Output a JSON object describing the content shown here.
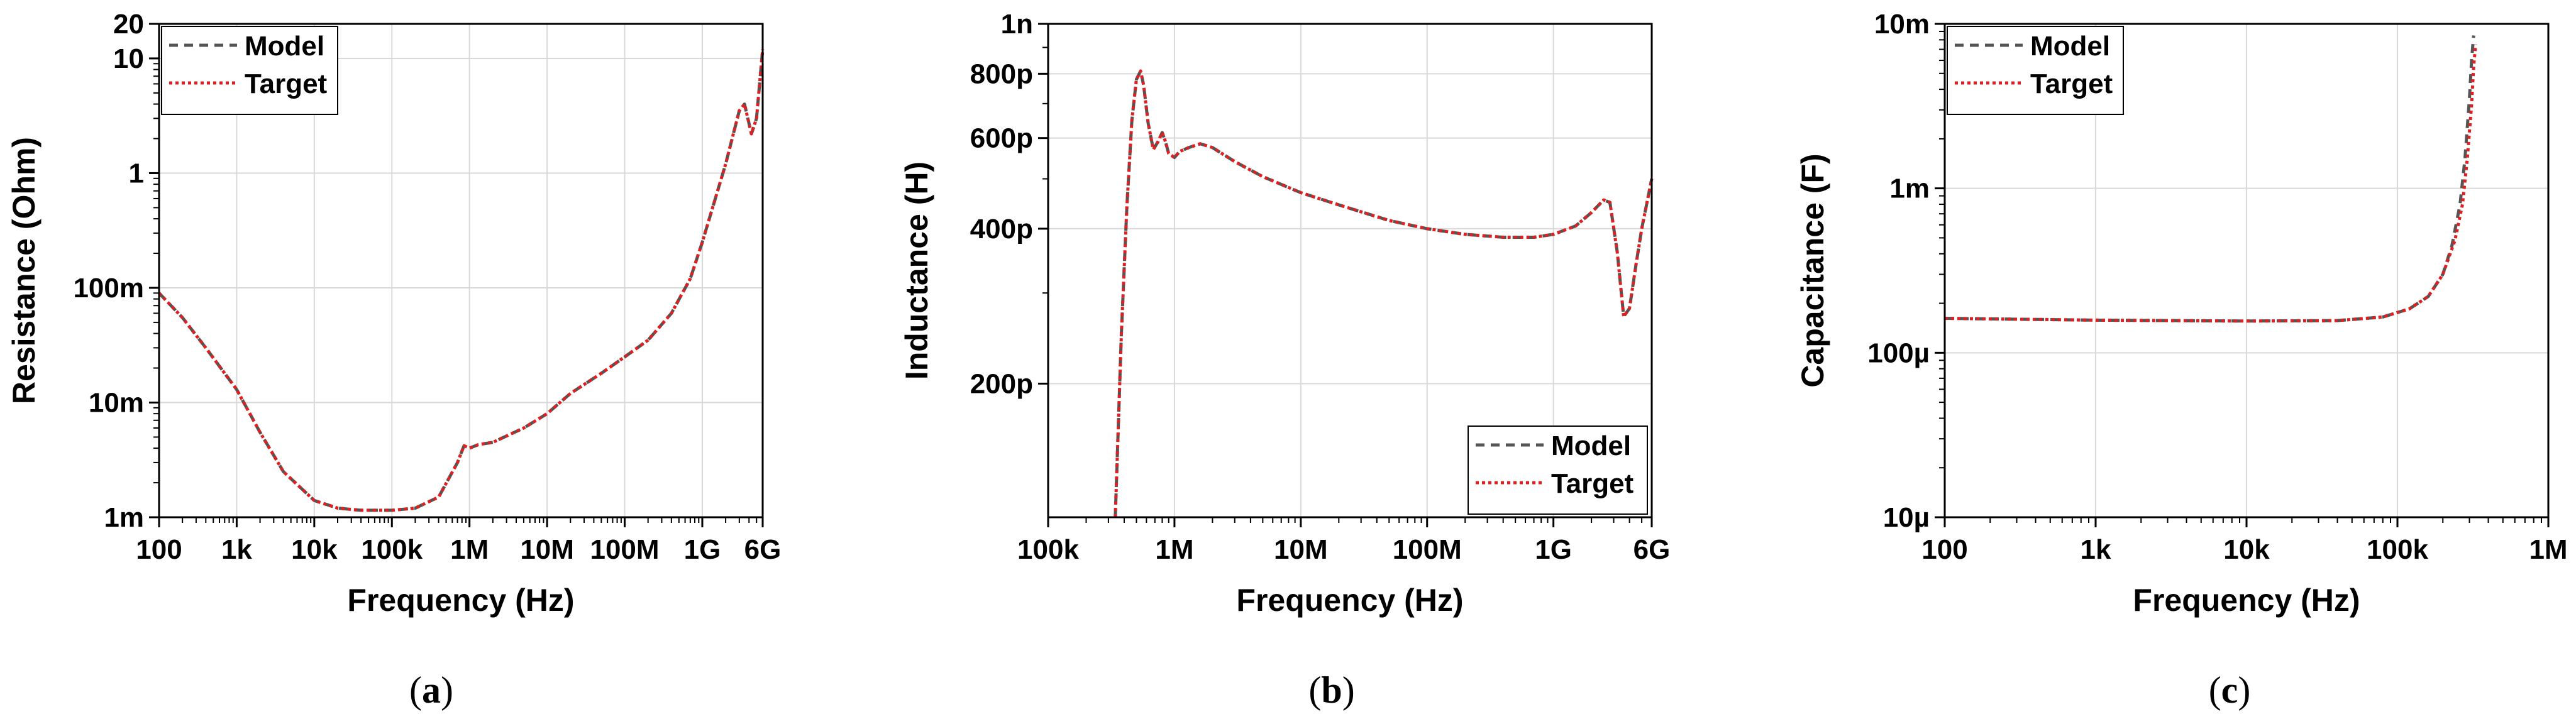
{
  "chart_data": [
    {
      "type": "line",
      "xlabel": "Frequency (Hz)",
      "ylabel": "Resistance (Ohm)",
      "xscale": "log",
      "yscale": "log",
      "xlim": [
        100,
        6000000000
      ],
      "ylim": [
        0.001,
        20
      ],
      "xticks": [
        {
          "value": 100,
          "label": "100"
        },
        {
          "value": 1000,
          "label": "1k"
        },
        {
          "value": 10000,
          "label": "10k"
        },
        {
          "value": 100000,
          "label": "100k"
        },
        {
          "value": 1000000,
          "label": "1M"
        },
        {
          "value": 10000000,
          "label": "10M"
        },
        {
          "value": 100000000,
          "label": "100M"
        },
        {
          "value": 1000000000,
          "label": "1G"
        },
        {
          "value": 6000000000,
          "label": "6G"
        }
      ],
      "yticks": [
        {
          "value": 0.001,
          "label": "1m"
        },
        {
          "value": 0.01,
          "label": "10m"
        },
        {
          "value": 0.1,
          "label": "100m"
        },
        {
          "value": 1,
          "label": "1"
        },
        {
          "value": 10,
          "label": "10"
        },
        {
          "value": 20,
          "label": "20"
        }
      ],
      "grid": true,
      "legend_position": "top-left",
      "caption": "a",
      "series": [
        {
          "name": "Model",
          "color": "#555555",
          "style": "dashed",
          "x": [
            100,
            200,
            400,
            1000,
            2000,
            4000,
            10000,
            20000,
            40000,
            100000,
            200000,
            400000,
            700000,
            850000,
            1000000,
            1300000,
            2000000,
            5000000,
            10000000,
            20000000,
            50000000,
            100000000,
            200000000,
            400000000,
            700000000,
            1000000000,
            2000000000,
            3000000000,
            3500000000,
            4300000000,
            5000000000,
            6000000000
          ],
          "y": [
            0.09,
            0.055,
            0.03,
            0.013,
            0.0055,
            0.0025,
            0.0014,
            0.0012,
            0.00115,
            0.00115,
            0.0012,
            0.0015,
            0.003,
            0.0042,
            0.004,
            0.0043,
            0.0045,
            0.006,
            0.008,
            0.012,
            0.018,
            0.025,
            0.035,
            0.06,
            0.12,
            0.25,
            1.2,
            3.5,
            4.0,
            2.2,
            3.0,
            12
          ]
        },
        {
          "name": "Target",
          "color": "#e02020",
          "style": "dotted",
          "x": [
            100,
            200,
            400,
            1000,
            2000,
            4000,
            10000,
            20000,
            40000,
            100000,
            200000,
            400000,
            700000,
            850000,
            1000000,
            1300000,
            2000000,
            5000000,
            10000000,
            20000000,
            50000000,
            100000000,
            200000000,
            400000000,
            700000000,
            1000000000,
            2000000000,
            3000000000,
            3500000000,
            4300000000,
            5000000000,
            6000000000
          ],
          "y": [
            0.09,
            0.055,
            0.03,
            0.013,
            0.0055,
            0.0025,
            0.0014,
            0.0012,
            0.00115,
            0.00115,
            0.0012,
            0.0015,
            0.003,
            0.0042,
            0.004,
            0.0043,
            0.0045,
            0.006,
            0.008,
            0.012,
            0.018,
            0.025,
            0.035,
            0.06,
            0.12,
            0.25,
            1.2,
            3.5,
            4.0,
            2.2,
            3.0,
            12
          ]
        }
      ]
    },
    {
      "type": "line",
      "xlabel": "Frequency (Hz)",
      "ylabel": "Inductance (H)",
      "xscale": "log",
      "yscale": "log",
      "xlim": [
        100000,
        6000000000
      ],
      "ylim": [
        1.1e-10,
        1e-09
      ],
      "xticks": [
        {
          "value": 100000,
          "label": "100k"
        },
        {
          "value": 1000000,
          "label": "1M"
        },
        {
          "value": 10000000,
          "label": "10M"
        },
        {
          "value": 100000000,
          "label": "100M"
        },
        {
          "value": 1000000000,
          "label": "1G"
        },
        {
          "value": 6000000000,
          "label": "6G"
        }
      ],
      "yticks": [
        {
          "value": 2e-10,
          "label": "200p"
        },
        {
          "value": 4e-10,
          "label": "400p"
        },
        {
          "value": 6e-10,
          "label": "600p"
        },
        {
          "value": 8e-10,
          "label": "800p"
        },
        {
          "value": 1e-09,
          "label": "1n"
        }
      ],
      "grid": true,
      "legend_position": "bottom-right",
      "caption": "b",
      "series": [
        {
          "name": "Model",
          "color": "#555555",
          "style": "dashed",
          "x": [
            340000,
            380000,
            420000,
            460000,
            500000,
            540000,
            570000,
            620000,
            680000,
            740000,
            800000,
            850000,
            900000,
            1000000,
            1100000,
            1300000,
            1600000,
            2000000,
            3000000,
            5000000,
            10000000,
            20000000,
            50000000,
            100000000,
            200000000,
            400000000,
            700000000,
            1000000000,
            1500000000,
            2000000000,
            2500000000,
            2800000000,
            3200000000,
            3600000000,
            4000000000,
            4500000000,
            5000000000,
            6000000000
          ],
          "y": [
            1.1e-10,
            2.5e-10,
            4.4e-10,
            6.5e-10,
            7.8e-10,
            8.1e-10,
            7.6e-10,
            6.4e-10,
            5.7e-10,
            5.9e-10,
            6.15e-10,
            5.9e-10,
            5.6e-10,
            5.5e-10,
            5.65e-10,
            5.75e-10,
            5.85e-10,
            5.75e-10,
            5.4e-10,
            5.05e-10,
            4.7e-10,
            4.45e-10,
            4.15e-10,
            4e-10,
            3.9e-10,
            3.85e-10,
            3.85e-10,
            3.9e-10,
            4.05e-10,
            4.3e-10,
            4.55e-10,
            4.5e-10,
            3.6e-10,
            2.7e-10,
            2.8e-10,
            3.4e-10,
            4e-10,
            5e-10
          ]
        },
        {
          "name": "Target",
          "color": "#e02020",
          "style": "dotted",
          "x": [
            340000,
            380000,
            420000,
            460000,
            500000,
            540000,
            570000,
            620000,
            680000,
            740000,
            800000,
            850000,
            900000,
            1000000,
            1100000,
            1300000,
            1600000,
            2000000,
            3000000,
            5000000,
            10000000,
            20000000,
            50000000,
            100000000,
            200000000,
            400000000,
            700000000,
            1000000000,
            1500000000,
            2000000000,
            2500000000,
            2800000000,
            3200000000,
            3600000000,
            4000000000,
            4500000000,
            5000000000,
            6000000000
          ],
          "y": [
            1.1e-10,
            2.5e-10,
            4.4e-10,
            6.5e-10,
            7.8e-10,
            8.1e-10,
            7.6e-10,
            6.4e-10,
            5.7e-10,
            5.9e-10,
            6.15e-10,
            5.9e-10,
            5.6e-10,
            5.5e-10,
            5.65e-10,
            5.75e-10,
            5.85e-10,
            5.75e-10,
            5.4e-10,
            5.05e-10,
            4.7e-10,
            4.45e-10,
            4.15e-10,
            4e-10,
            3.9e-10,
            3.85e-10,
            3.85e-10,
            3.9e-10,
            4.05e-10,
            4.3e-10,
            4.55e-10,
            4.5e-10,
            3.6e-10,
            2.7e-10,
            2.8e-10,
            3.4e-10,
            4e-10,
            5e-10
          ]
        }
      ]
    },
    {
      "type": "line",
      "xlabel": "Frequency (Hz)",
      "ylabel": "Capacitance (F)",
      "xscale": "log",
      "yscale": "log",
      "xlim": [
        100,
        1000000
      ],
      "ylim": [
        1e-05,
        0.01
      ],
      "xticks": [
        {
          "value": 100,
          "label": "100"
        },
        {
          "value": 1000,
          "label": "1k"
        },
        {
          "value": 10000,
          "label": "10k"
        },
        {
          "value": 100000,
          "label": "100k"
        },
        {
          "value": 1000000,
          "label": "1M"
        }
      ],
      "yticks": [
        {
          "value": 1e-05,
          "label": "10µ"
        },
        {
          "value": 0.0001,
          "label": "100µ"
        },
        {
          "value": 0.001,
          "label": "1m"
        },
        {
          "value": 0.01,
          "label": "10m"
        }
      ],
      "grid": true,
      "legend_position": "top-left",
      "caption": "c",
      "series": [
        {
          "name": "Model",
          "color": "#555555",
          "style": "dashed",
          "x": [
            100,
            1000,
            10000,
            40000,
            80000,
            120000,
            160000,
            200000,
            230000,
            260000,
            280000,
            300000,
            310000,
            320000
          ],
          "y": [
            0.000162,
            0.000158,
            0.000156,
            0.000157,
            0.000165,
            0.000185,
            0.00022,
            0.0003,
            0.00045,
            0.0008,
            0.0015,
            0.0035,
            0.006,
            0.0085
          ]
        },
        {
          "name": "Target",
          "color": "#e02020",
          "style": "dotted",
          "x": [
            100,
            1000,
            10000,
            40000,
            80000,
            120000,
            160000,
            200000,
            240000,
            270000,
            290000,
            310000,
            320000,
            330000
          ],
          "y": [
            0.000162,
            0.000158,
            0.000156,
            0.000157,
            0.000165,
            0.000185,
            0.00022,
            0.0003,
            0.00048,
            0.0008,
            0.0015,
            0.0032,
            0.0055,
            0.0075
          ]
        }
      ]
    }
  ]
}
